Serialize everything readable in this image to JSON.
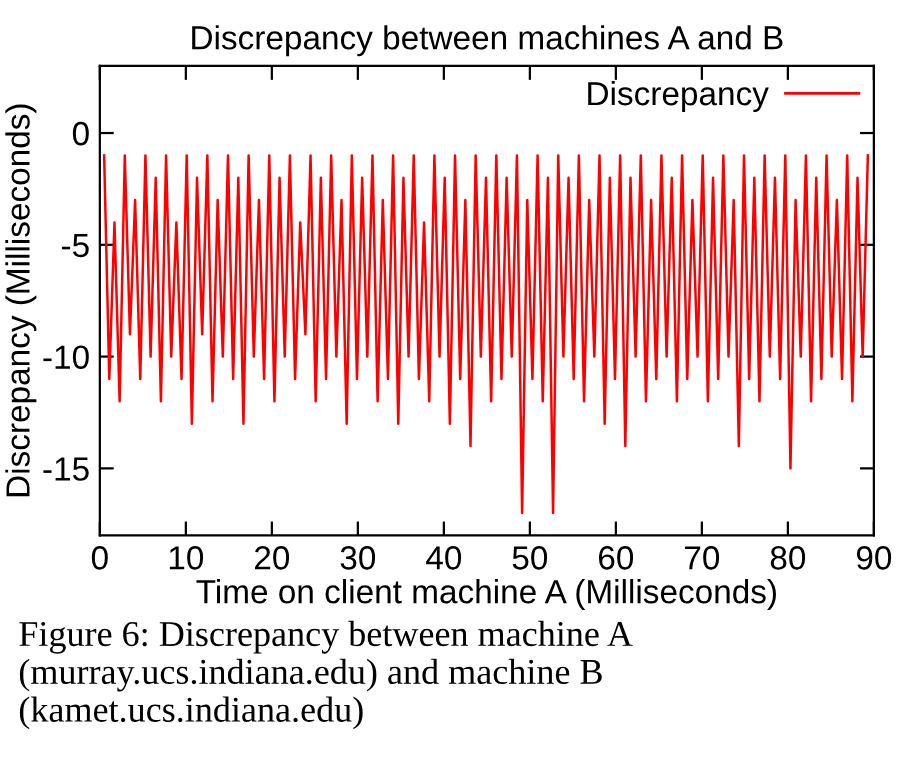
{
  "chart_data": {
    "type": "line",
    "title": "Discrepancy between machines A and B",
    "xlabel": "Time on client machine A (Milliseconds)",
    "ylabel": "Discrepancy (Milliseconds)",
    "xlim": [
      0,
      90
    ],
    "xticks": [
      0,
      10,
      20,
      30,
      40,
      50,
      60,
      70,
      80,
      90
    ],
    "ylim": [
      -18,
      3
    ],
    "yticks": [
      -15,
      -10,
      -5,
      0
    ],
    "grid": false,
    "legend": "top right",
    "marker": "none",
    "line_style": "solid",
    "annotations": [
      "Figure 6: Discrepancy between machine A (murray.ucs.indiana.edu) and machine B (kamet.ucs.indiana.edu)"
    ],
    "x": [
      0.5,
      1.1,
      1.7,
      2.3,
      2.9,
      3.5,
      4.1,
      4.7,
      5.3,
      5.9,
      6.5,
      7.1,
      7.7,
      8.3,
      8.9,
      9.5,
      10.1,
      10.7,
      11.3,
      11.9,
      12.5,
      13.1,
      13.7,
      14.3,
      14.9,
      15.5,
      16.1,
      16.7,
      17.3,
      17.9,
      18.5,
      19.1,
      19.7,
      20.3,
      20.9,
      21.5,
      22.1,
      22.7,
      23.3,
      23.9,
      24.5,
      25.1,
      25.7,
      26.3,
      26.9,
      27.5,
      28.1,
      28.7,
      29.3,
      29.9,
      30.5,
      31.1,
      31.7,
      32.3,
      32.9,
      33.5,
      34.1,
      34.7,
      35.3,
      35.9,
      36.5,
      37.1,
      37.7,
      38.3,
      38.9,
      39.5,
      40.1,
      40.7,
      41.3,
      41.9,
      42.5,
      43.1,
      43.7,
      44.3,
      44.9,
      45.5,
      46.1,
      46.7,
      47.3,
      47.9,
      48.5,
      49.1,
      49.7,
      50.3,
      50.9,
      51.5,
      52.1,
      52.7,
      53.3,
      53.9,
      54.5,
      55.1,
      55.7,
      56.3,
      56.9,
      57.5,
      58.1,
      58.7,
      59.3,
      59.9,
      60.5,
      61.1,
      61.7,
      62.3,
      62.9,
      63.5,
      64.1,
      64.7,
      65.3,
      65.9,
      66.5,
      67.1,
      67.7,
      68.3,
      68.9,
      69.5,
      70.1,
      70.7,
      71.3,
      71.9,
      72.5,
      73.1,
      73.7,
      74.3,
      74.9,
      75.5,
      76.1,
      76.7,
      77.3,
      77.9,
      78.5,
      79.1,
      79.7,
      80.3,
      80.9,
      81.5,
      82.1,
      82.7,
      83.3,
      83.9,
      84.5,
      85.1,
      85.7,
      86.3,
      86.9,
      87.5,
      88.1,
      88.7,
      89.3
    ],
    "series": [
      {
        "name": "Discrepancy",
        "color": "#ff0000",
        "values": [
          -1,
          -11,
          -4,
          -12,
          -1,
          -9,
          -3,
          -11,
          -1,
          -10,
          -2,
          -12,
          -1,
          -10,
          -4,
          -11,
          -1,
          -13,
          -2,
          -9,
          -1,
          -12,
          -3,
          -10,
          -1,
          -11,
          -2,
          -13,
          -1,
          -10,
          -3,
          -11,
          -1,
          -12,
          -2,
          -10,
          -1,
          -11,
          -4,
          -9,
          -1,
          -12,
          -2,
          -11,
          -1,
          -10,
          -3,
          -13,
          -1,
          -11,
          -2,
          -10,
          -1,
          -12,
          -3,
          -11,
          -1,
          -13,
          -2,
          -10,
          -1,
          -11,
          -4,
          -12,
          -1,
          -10,
          -2,
          -13,
          -1,
          -11,
          -3,
          -14,
          -1,
          -10,
          -2,
          -12,
          -1,
          -11,
          -2,
          -10,
          -1,
          -17,
          -3,
          -11,
          -1,
          -12,
          -2,
          -17,
          -1,
          -10,
          -2,
          -11,
          -1,
          -12,
          -3,
          -10,
          -1,
          -13,
          -2,
          -11,
          -1,
          -14,
          -2,
          -10,
          -1,
          -12,
          -3,
          -11,
          -1,
          -10,
          -2,
          -12,
          -1,
          -11,
          -3,
          -10,
          -1,
          -12,
          -2,
          -11,
          -1,
          -10,
          -3,
          -14,
          -1,
          -11,
          -2,
          -12,
          -1,
          -10,
          -2,
          -11,
          -1,
          -15,
          -3,
          -10,
          -1,
          -12,
          -2,
          -11,
          -1,
          -10,
          -3,
          -11,
          -1,
          -12,
          -2,
          -10,
          -1
        ]
      }
    ]
  }
}
